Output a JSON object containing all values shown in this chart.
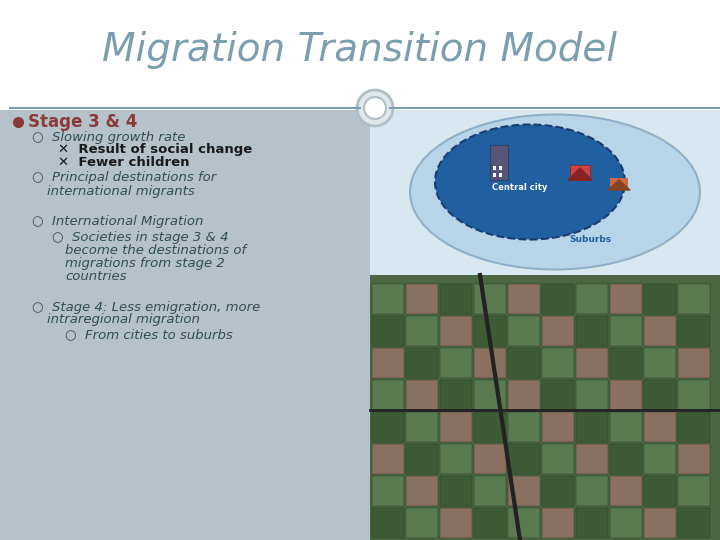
{
  "title": "Migration Transition Model",
  "title_color": "#7b9eb0",
  "title_fontsize": 28,
  "title_font": "Georgia",
  "bg_color": "#ffffff",
  "left_panel_color": "#a8b8c0",
  "bullet1": "Stage 3 & 4",
  "bullet1_color": "#8b3a3a",
  "sub1": "Slowing growth rate",
  "sub1_color": "#2f4f4f",
  "sub1a": "Result of social change",
  "sub1b": "Fewer children",
  "sub1ab_color": "#1a1a1a",
  "sub2": "Principal destinations for\ninternational migrants",
  "sub2_color": "#2f4f4f",
  "sub3": "International Migration",
  "sub3_color": "#2f4f4f",
  "sub3a": "Societies in stage 3 & 4\nbecome the destinations of\nmigrations from stage 2\ncountries",
  "sub3a_color": "#2f4f4f",
  "sub4": "Stage 4: Less emigration, more\nintraregional migration",
  "sub4_color": "#2f4f4f",
  "sub4a": "From cities to suburbs",
  "sub4a_color": "#2f4f4f",
  "divider_color": "#7b9eb0",
  "circle_color": "#b0bec5",
  "circle_inner_color": "#e0e8ec"
}
